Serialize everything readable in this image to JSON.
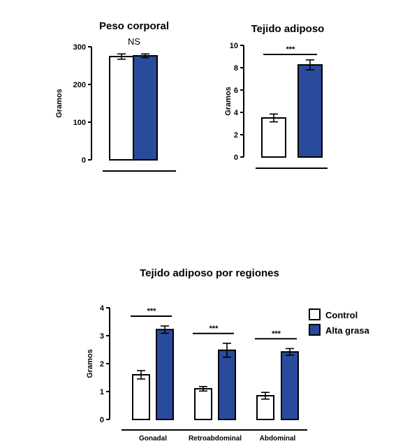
{
  "colors": {
    "control": "#ffffff",
    "high_fat": "#2a4a9c",
    "stroke": "#000000"
  },
  "legend": {
    "placement": "right",
    "items": [
      {
        "label": "Control",
        "color": "#ffffff"
      },
      {
        "label": "Alta grasa",
        "color": "#2a4a9c"
      }
    ]
  },
  "chart_data": [
    {
      "type": "bar",
      "title": "Peso corporal",
      "ylabel": "Gramos",
      "ylim": [
        0,
        300
      ],
      "yticks": [
        0,
        100,
        200,
        300
      ],
      "categories": [
        ""
      ],
      "series": [
        {
          "name": "Control",
          "values": [
            274
          ],
          "errors": [
            7
          ]
        },
        {
          "name": "Alta grasa",
          "values": [
            276
          ],
          "errors": [
            5
          ]
        }
      ],
      "significance": [
        "NS"
      ]
    },
    {
      "type": "bar",
      "title": "Tejido adiposo",
      "ylabel": "Gramos",
      "ylim": [
        0,
        10
      ],
      "yticks": [
        0,
        2,
        4,
        6,
        8,
        10
      ],
      "categories": [
        ""
      ],
      "series": [
        {
          "name": "Control",
          "values": [
            3.5
          ],
          "errors": [
            0.35
          ]
        },
        {
          "name": "Alta grasa",
          "values": [
            8.25
          ],
          "errors": [
            0.45
          ]
        }
      ],
      "significance": [
        "***"
      ]
    },
    {
      "type": "bar",
      "title": "Tejido adiposo por regiones",
      "ylabel": "Gramos",
      "ylim": [
        0,
        4
      ],
      "yticks": [
        0,
        1,
        2,
        3,
        4
      ],
      "categories": [
        "Gonadal",
        "Retroabdominal",
        "Abdominal"
      ],
      "series": [
        {
          "name": "Control",
          "values": [
            1.6,
            1.1,
            0.85
          ],
          "errors": [
            0.15,
            0.08,
            0.12
          ]
        },
        {
          "name": "Alta grasa",
          "values": [
            3.22,
            2.48,
            2.42
          ],
          "errors": [
            0.13,
            0.25,
            0.12
          ]
        }
      ],
      "significance": [
        "***",
        "***",
        "***"
      ]
    }
  ]
}
